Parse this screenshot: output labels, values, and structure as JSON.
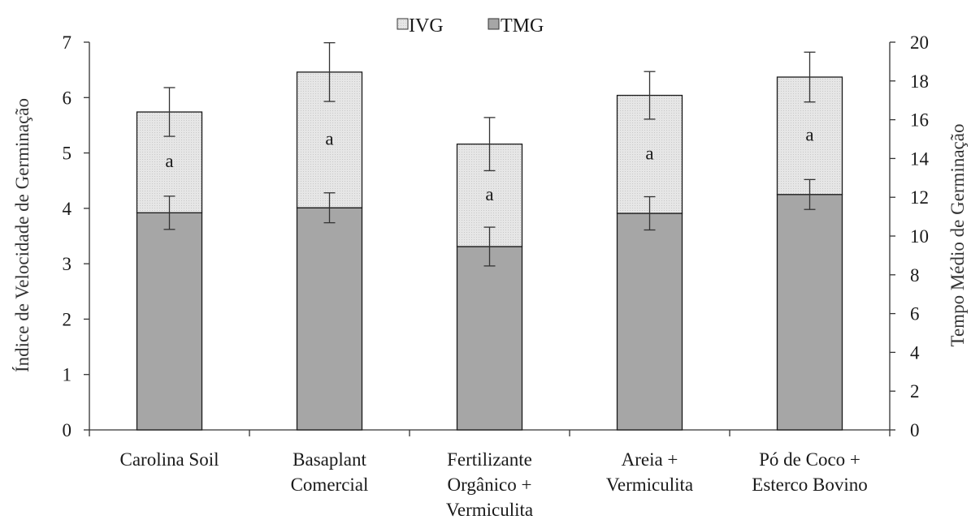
{
  "chart_data": {
    "type": "bar",
    "stacked": true,
    "categories": [
      [
        "Carolina Soil"
      ],
      [
        "Basaplant",
        "Comercial"
      ],
      [
        "Fertilizante",
        "Orgânico +",
        "Vermiculita"
      ],
      [
        "Areia +",
        "Vermiculita"
      ],
      [
        "Pó de Coco +",
        "Esterco Bovino"
      ]
    ],
    "series": [
      {
        "name": "TMG",
        "axis": "left",
        "values": [
          3.92,
          4.01,
          3.31,
          3.91,
          4.25
        ],
        "error": [
          0.3,
          0.27,
          0.35,
          0.3,
          0.27
        ],
        "color": "#a6a6a6"
      },
      {
        "name": "IVG",
        "axis": "left",
        "stack_top": [
          5.74,
          6.46,
          5.16,
          6.04,
          6.37
        ],
        "error": [
          0.44,
          0.53,
          0.48,
          0.43,
          0.45
        ],
        "color": "#e6e6e6",
        "labels": [
          "a",
          "a",
          "a",
          "a",
          "a"
        ]
      }
    ],
    "ylabel_left": "Índice de Velocidade de Germinação",
    "ylabel_right": "Tempo Médio de Germinação",
    "ylim_left": [
      0,
      7
    ],
    "ylim_right": [
      0,
      20
    ],
    "yticks_left": [
      "0",
      "1",
      "2",
      "3",
      "4",
      "5",
      "6",
      "7"
    ],
    "yticks_right": [
      "0",
      "2",
      "4",
      "6",
      "8",
      "10",
      "12",
      "14",
      "16",
      "18",
      "20"
    ],
    "legend": {
      "placement": "top-center",
      "order": [
        "IVG",
        "TMG"
      ]
    },
    "grid": false,
    "colors": {
      "tmg": "#a6a6a6",
      "ivg": "#e6e6e6",
      "axis": "#333333",
      "bar_edge": "#1a1a1a"
    }
  }
}
